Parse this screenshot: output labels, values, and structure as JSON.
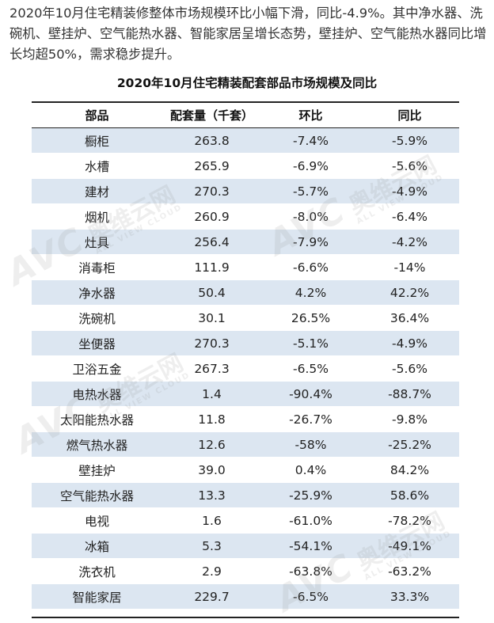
{
  "intro_text": "2020年10月住宅精装修整体市场规模环比小幅下滑，同比-4.9%。其中净水器、洗碗机、壁挂炉、空气能热水器、智能家居呈增长态势，壁挂炉、空气能热水器同比增长均超50%，需求稳步提升。",
  "table": {
    "title": "2020年10月住宅精装配套部品市场规模及同比",
    "headers": [
      "部品",
      "配套量（千套）",
      "环比",
      "同比"
    ],
    "rows": [
      [
        "橱柜",
        "263.8",
        "-7.4%",
        "-5.9%"
      ],
      [
        "水槽",
        "265.9",
        "-6.9%",
        "-5.6%"
      ],
      [
        "建材",
        "270.3",
        "-5.7%",
        "-4.9%"
      ],
      [
        "烟机",
        "260.9",
        "-8.0%",
        "-6.4%"
      ],
      [
        "灶具",
        "256.4",
        "-7.9%",
        "-4.2%"
      ],
      [
        "消毒柜",
        "111.9",
        "-6.6%",
        "-14%"
      ],
      [
        "净水器",
        "50.4",
        "4.2%",
        "42.2%"
      ],
      [
        "洗碗机",
        "30.1",
        "26.5%",
        "36.4%"
      ],
      [
        "坐便器",
        "270.3",
        "-5.1%",
        "-4.9%"
      ],
      [
        "卫浴五金",
        "267.3",
        "-6.5%",
        "-5.6%"
      ],
      [
        "电热水器",
        "1.4",
        "-90.4%",
        "-88.7%"
      ],
      [
        "太阳能热水器",
        "11.8",
        "-26.7%",
        "-9.8%"
      ],
      [
        "燃气热水器",
        "12.6",
        "-58%",
        "-25.2%"
      ],
      [
        "壁挂炉",
        "39.0",
        "0.4%",
        "84.2%"
      ],
      [
        "空气能热水器",
        "13.3",
        "-25.9%",
        "58.6%"
      ],
      [
        "电视",
        "1.6",
        "-61.0%",
        "-78.2%"
      ],
      [
        "冰箱",
        "5.3",
        "-54.1%",
        "-49.1%"
      ],
      [
        "洗衣机",
        "2.9",
        "-63.8%",
        "-63.2%"
      ],
      [
        "智能家居",
        "229.7",
        "-6.5%",
        "33.3%"
      ]
    ]
  },
  "watermark": {
    "brand": "AVC",
    "cn": "奥维云网",
    "en": "ALL VIEW CLOUD"
  },
  "colors": {
    "stripe": "#dce6f1",
    "rule": "#222222"
  }
}
